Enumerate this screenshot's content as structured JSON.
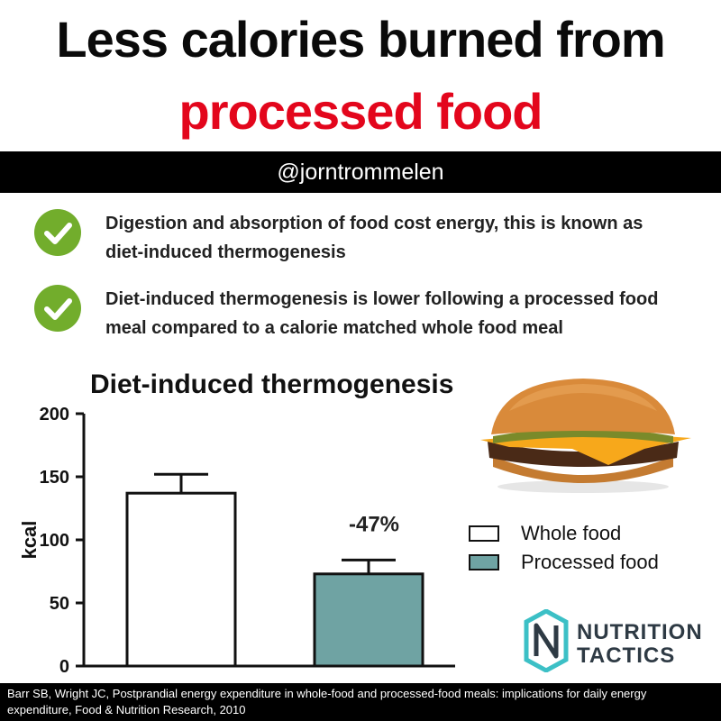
{
  "header": {
    "title_line1": "Less calories burned from",
    "title_line2": "processed food",
    "title_line2_color": "#e3061c",
    "handle": "@jorntrommelen"
  },
  "points": [
    {
      "text": "Digestion and absorption of food cost energy, this is known as diet-induced thermogenesis",
      "icon": "check-circle-icon"
    },
    {
      "text": "Diet-induced thermogenesis is lower following a processed food meal compared to a calorie matched whole food meal",
      "icon": "check-circle-icon"
    }
  ],
  "chart_data": {
    "type": "bar",
    "title": "Diet-induced thermogenesis",
    "xlabel": "",
    "ylabel": "kcal",
    "ylim": [
      0,
      200
    ],
    "yticks": [
      "0",
      "50",
      "100",
      "150",
      "200"
    ],
    "categories": [
      "Whole food",
      "Processed food"
    ],
    "values": [
      137,
      73
    ],
    "error_upper": [
      152,
      84
    ],
    "colors": [
      "#ffffff",
      "#6fa3a3"
    ],
    "annotation": "-47%",
    "legend": [
      "Whole food",
      "Processed food"
    ],
    "legend_position": "right"
  },
  "logo": {
    "line1": "NUTRITION",
    "line2": "TACTICS",
    "icon": "nutrition-tactics-logo-icon"
  },
  "image": {
    "icon": "burger-image-icon"
  },
  "footer": {
    "citation": "Barr SB, Wright JC, Postprandial energy expenditure in whole-food and processed-food meals: implications for daily energy expenditure, Food & Nutrition Research, 2010"
  }
}
